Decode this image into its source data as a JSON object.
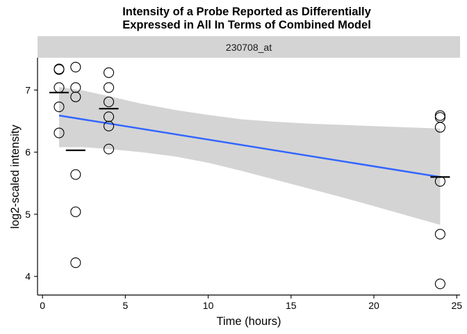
{
  "chart_data": {
    "type": "scatter",
    "title": [
      "Intensity of a Probe Reported as Differentially",
      "Expressed in All In Terms of Combined Model"
    ],
    "facet_label": "230708_at",
    "xlabel": "Time (hours)",
    "ylabel": "log2-scaled intensity",
    "xlim": [
      -0.3,
      25.2
    ],
    "ylim": [
      3.7,
      7.52
    ],
    "xticks": [
      0,
      5,
      10,
      15,
      20,
      25
    ],
    "yticks": [
      4,
      5,
      6,
      7
    ],
    "grid": false,
    "points": [
      {
        "x": 1,
        "y": 7.34
      },
      {
        "x": 1,
        "y": 7.33
      },
      {
        "x": 1,
        "y": 7.04
      },
      {
        "x": 1,
        "y": 6.73
      },
      {
        "x": 1,
        "y": 6.31
      },
      {
        "x": 2,
        "y": 7.37
      },
      {
        "x": 2,
        "y": 7.04
      },
      {
        "x": 2,
        "y": 6.89
      },
      {
        "x": 2,
        "y": 5.64
      },
      {
        "x": 2,
        "y": 5.04
      },
      {
        "x": 2,
        "y": 4.22
      },
      {
        "x": 4,
        "y": 7.28
      },
      {
        "x": 4,
        "y": 7.04
      },
      {
        "x": 4,
        "y": 6.81
      },
      {
        "x": 4,
        "y": 6.57
      },
      {
        "x": 4,
        "y": 6.42
      },
      {
        "x": 4,
        "y": 6.05
      },
      {
        "x": 24,
        "y": 6.59
      },
      {
        "x": 24,
        "y": 6.56
      },
      {
        "x": 24,
        "y": 6.4
      },
      {
        "x": 24,
        "y": 5.53
      },
      {
        "x": 24,
        "y": 4.68
      },
      {
        "x": 24,
        "y": 3.88
      }
    ],
    "means": [
      {
        "x": 1,
        "y": 6.96
      },
      {
        "x": 2,
        "y": 6.03
      },
      {
        "x": 4,
        "y": 6.7
      },
      {
        "x": 24,
        "y": 5.6
      }
    ],
    "fit": {
      "x": [
        1,
        24
      ],
      "y": [
        6.59,
        5.6
      ]
    },
    "confidence_band": {
      "x": [
        1,
        2.5,
        4,
        6,
        8,
        10,
        12,
        14,
        16,
        18,
        20,
        22,
        24
      ],
      "lower": [
        6.08,
        6.08,
        6.05,
        6.0,
        5.93,
        5.83,
        5.7,
        5.56,
        5.42,
        5.28,
        5.13,
        4.98,
        4.83
      ],
      "upper": [
        7.05,
        6.99,
        6.9,
        6.78,
        6.68,
        6.6,
        6.53,
        6.49,
        6.46,
        6.44,
        6.42,
        6.4,
        6.38
      ]
    },
    "colors": {
      "fit_line": "#3366ff",
      "band": "#d4d4d4",
      "points": "#000000",
      "mean_bar": "#000000",
      "strip": "#d4d4d4",
      "axis": "#000000"
    }
  }
}
